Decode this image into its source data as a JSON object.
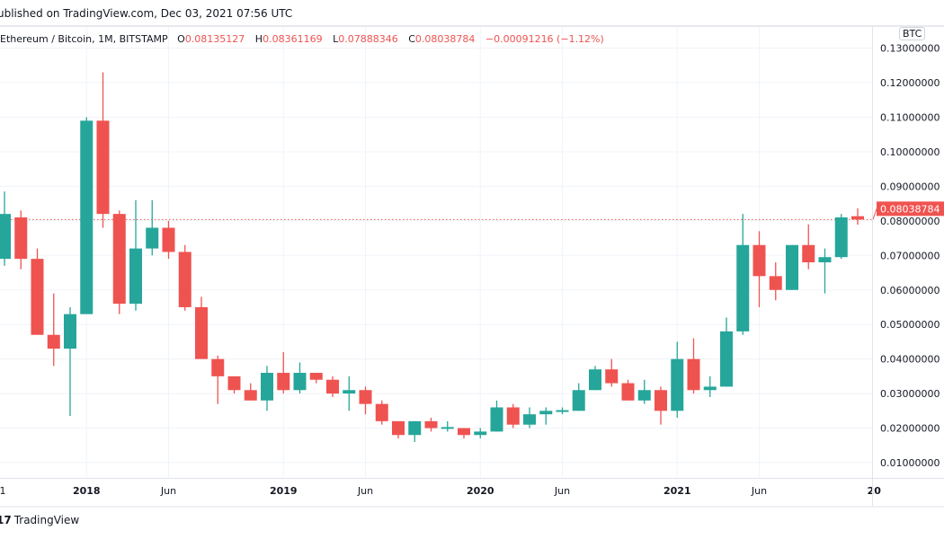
{
  "header": {
    "published": "ublished on TradingView.com, Dec 03, 2021 07:56 UTC"
  },
  "legend": {
    "symbol": "Ethereum / Bitcoin, 1M, BITSTAMP",
    "o_label": "O",
    "o": "0.08135127",
    "h_label": "H",
    "h": "0.08361169",
    "l_label": "L",
    "l": "0.07888346",
    "c_label": "C",
    "c": "0.08038784",
    "change": "−0.00091216 (−1.12%)"
  },
  "currency_badge": "BTC",
  "footer": {
    "logo_text": "TradingView",
    "logo_icon": "tradingview-logo-icon"
  },
  "colors": {
    "up": "#26a69a",
    "down": "#ef5350",
    "last_price": "#ef5350",
    "grid": "#f0f3fa"
  },
  "chart_data": {
    "type": "candlestick",
    "ylim": [
      0.005,
      0.135
    ],
    "y_ticks": [
      "0.13000000",
      "0.12000000",
      "0.11000000",
      "0.10000000",
      "0.09000000",
      "0.08000000",
      "0.07000000",
      "0.06000000",
      "0.05000000",
      "0.04000000",
      "0.03000000",
      "0.02000000",
      "0.01000000"
    ],
    "x_ticks": [
      "1",
      "2018",
      "Jun",
      "2019",
      "Jun",
      "2020",
      "Jun",
      "2021",
      "Jun",
      "20"
    ],
    "last_price_label": "0.08038784",
    "last_price": 0.08038784,
    "grid": true,
    "start_month": "2017-08",
    "ohlc": [
      [
        0.069,
        0.0885,
        0.067,
        0.082
      ],
      [
        0.081,
        0.083,
        0.066,
        0.069
      ],
      [
        0.069,
        0.072,
        0.047,
        0.047
      ],
      [
        0.047,
        0.059,
        0.038,
        0.043
      ],
      [
        0.043,
        0.055,
        0.0235,
        0.053
      ],
      [
        0.053,
        0.11,
        0.053,
        0.109
      ],
      [
        0.109,
        0.123,
        0.078,
        0.082
      ],
      [
        0.082,
        0.083,
        0.053,
        0.056
      ],
      [
        0.056,
        0.086,
        0.054,
        0.072
      ],
      [
        0.072,
        0.086,
        0.07,
        0.078
      ],
      [
        0.078,
        0.08,
        0.069,
        0.071
      ],
      [
        0.071,
        0.073,
        0.054,
        0.055
      ],
      [
        0.055,
        0.058,
        0.04,
        0.04
      ],
      [
        0.04,
        0.041,
        0.027,
        0.035
      ],
      [
        0.035,
        0.035,
        0.03,
        0.031
      ],
      [
        0.031,
        0.033,
        0.028,
        0.028
      ],
      [
        0.028,
        0.038,
        0.025,
        0.036
      ],
      [
        0.036,
        0.042,
        0.03,
        0.031
      ],
      [
        0.031,
        0.039,
        0.03,
        0.036
      ],
      [
        0.036,
        0.036,
        0.033,
        0.034
      ],
      [
        0.034,
        0.035,
        0.029,
        0.03
      ],
      [
        0.03,
        0.035,
        0.025,
        0.031
      ],
      [
        0.031,
        0.032,
        0.024,
        0.027
      ],
      [
        0.027,
        0.028,
        0.021,
        0.022
      ],
      [
        0.022,
        0.022,
        0.017,
        0.018
      ],
      [
        0.018,
        0.022,
        0.016,
        0.022
      ],
      [
        0.022,
        0.023,
        0.019,
        0.02
      ],
      [
        0.02,
        0.022,
        0.019,
        0.0203
      ],
      [
        0.02,
        0.02,
        0.017,
        0.018
      ],
      [
        0.018,
        0.02,
        0.017,
        0.019
      ],
      [
        0.019,
        0.028,
        0.019,
        0.026
      ],
      [
        0.026,
        0.027,
        0.02,
        0.021
      ],
      [
        0.021,
        0.026,
        0.02,
        0.024
      ],
      [
        0.024,
        0.026,
        0.021,
        0.025
      ],
      [
        0.0248,
        0.026,
        0.024,
        0.0252
      ],
      [
        0.025,
        0.033,
        0.025,
        0.031
      ],
      [
        0.031,
        0.038,
        0.031,
        0.037
      ],
      [
        0.037,
        0.04,
        0.032,
        0.033
      ],
      [
        0.033,
        0.034,
        0.028,
        0.028
      ],
      [
        0.028,
        0.034,
        0.027,
        0.031
      ],
      [
        0.031,
        0.032,
        0.021,
        0.025
      ],
      [
        0.025,
        0.045,
        0.023,
        0.04
      ],
      [
        0.04,
        0.046,
        0.03,
        0.031
      ],
      [
        0.031,
        0.035,
        0.029,
        0.032
      ],
      [
        0.032,
        0.052,
        0.032,
        0.048
      ],
      [
        0.048,
        0.082,
        0.047,
        0.073
      ],
      [
        0.073,
        0.077,
        0.055,
        0.064
      ],
      [
        0.064,
        0.068,
        0.057,
        0.06
      ],
      [
        0.06,
        0.073,
        0.06,
        0.073
      ],
      [
        0.073,
        0.079,
        0.066,
        0.068
      ],
      [
        0.068,
        0.072,
        0.059,
        0.0695
      ],
      [
        0.0695,
        0.082,
        0.069,
        0.081
      ],
      [
        0.08135127,
        0.08361169,
        0.07888346,
        0.08038784
      ]
    ]
  }
}
